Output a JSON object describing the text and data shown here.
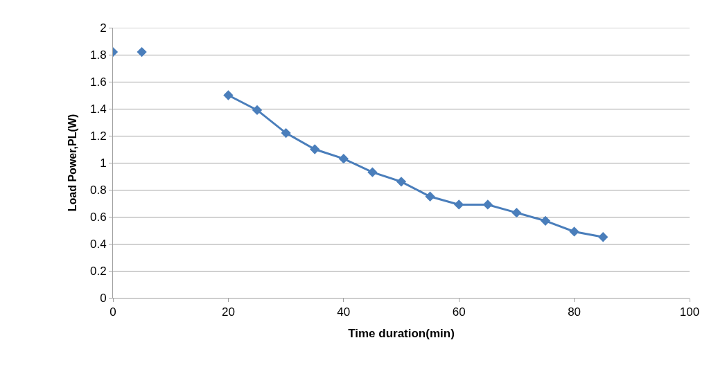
{
  "chart_data": {
    "type": "line",
    "xlabel": "Time duration(min)",
    "ylabel": "Load Power,PL(W)",
    "xlim": [
      0,
      100
    ],
    "xticks": [
      0,
      20,
      40,
      60,
      80,
      100
    ],
    "ylim": [
      0,
      2
    ],
    "yticks": [
      0,
      0.2,
      0.4,
      0.6,
      0.8,
      1,
      1.2,
      1.4,
      1.6,
      1.8,
      2
    ],
    "grid": "y",
    "marker": "diamond",
    "series": [
      {
        "type": "scatter",
        "color": "#4a7ebb",
        "x": [
          0,
          5
        ],
        "values": [
          1.82,
          1.82
        ]
      },
      {
        "color": "#4a7ebb",
        "x": [
          20,
          25,
          30,
          35,
          40,
          45,
          50,
          55,
          60,
          65,
          70,
          75,
          80,
          85
        ],
        "values": [
          1.5,
          1.39,
          1.22,
          1.1,
          1.03,
          0.93,
          0.86,
          0.75,
          0.69,
          0.69,
          0.63,
          0.57,
          0.49,
          0.45
        ]
      }
    ]
  }
}
